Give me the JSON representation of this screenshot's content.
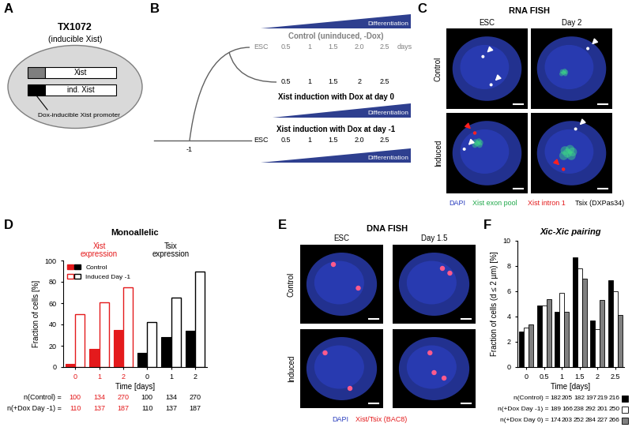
{
  "panel_letters": [
    "A",
    "B",
    "C",
    "D",
    "E",
    "F"
  ],
  "diagram_A": {
    "title": "TX1072",
    "subtitle": "(inducible Xist)",
    "genes": [
      "Xist",
      "ind. Xist"
    ],
    "promoter_label": "Dox-inducible Xist promoter"
  },
  "diagram_B": {
    "wedge_label": "Differentiation",
    "control_label": "Control (uninduced, -Dox)",
    "control_timeline": [
      "ESC",
      "0.5",
      "1",
      "1.5",
      "2.0",
      "2.5",
      "days"
    ],
    "day0_timeline": [
      "0.5",
      "1",
      "1.5",
      "2",
      "2.5"
    ],
    "day0_label": "Xist induction with Dox at day 0",
    "dayminus1_label": "Xist induction with Dox at day -1",
    "dayminus1_timeline": [
      "ESC",
      "0.5",
      "1",
      "1.5",
      "2.0",
      "2.5"
    ],
    "branch_label": "-1"
  },
  "images_C": {
    "title": "RNA FISH",
    "columns": [
      "ESC",
      "Day 2"
    ],
    "rows": [
      "Control",
      "Induced"
    ],
    "stains": [
      {
        "label": "DAPI",
        "color": "#2b3fbf"
      },
      {
        "label": "Xist exon pool",
        "color": "#1fa84a"
      },
      {
        "label": "Xist intron 1",
        "color": "#e41a1c"
      },
      {
        "label": "Tsix (DXPas34)",
        "color": "#000000"
      }
    ]
  },
  "images_E": {
    "title": "DNA FISH",
    "columns": [
      "ESC",
      "Day 1.5"
    ],
    "rows": [
      "Control",
      "Induced"
    ],
    "stains": [
      {
        "label": "DAPI",
        "color": "#2b3fbf"
      },
      {
        "label": "Xist/Tsix (BAC8)",
        "color": "#e41a1c"
      }
    ]
  },
  "chart_data": [
    {
      "type": "bar",
      "title": "Monoallelic",
      "categories": [
        "0",
        "1",
        "2",
        "0",
        "1",
        "2"
      ],
      "groups": [
        {
          "name": "Xist\nexpression",
          "color": "#e41a1c"
        },
        {
          "name": "Tsix\nexpression",
          "color": "#000000"
        }
      ],
      "series": [
        {
          "name": "Control",
          "colors": [
            "#e41a1c",
            "#e41a1c",
            "#e41a1c",
            "#000000",
            "#000000",
            "#000000"
          ],
          "values": [
            3,
            17,
            35,
            13,
            28,
            34
          ]
        },
        {
          "name": "Induced Day -1",
          "colors": [
            "#e41a1c",
            "#e41a1c",
            "#e41a1c",
            "#000000",
            "#000000",
            "#000000"
          ],
          "values": [
            50,
            61,
            75,
            42,
            65,
            90
          ]
        }
      ],
      "xlabel": "Time [days]",
      "ylabel": "Fraction of cells [%]",
      "ylim": [
        0,
        100
      ],
      "yticks": [
        0,
        20,
        40,
        60,
        80,
        100
      ],
      "legend": "upper left",
      "n_rows": [
        {
          "label": "n(Control) =",
          "values": [
            100,
            134,
            270,
            100,
            134,
            270
          ]
        },
        {
          "label": "n(+Dox Day -1) =",
          "values": [
            110,
            137,
            187,
            110,
            137,
            187
          ]
        }
      ]
    },
    {
      "type": "bar",
      "title": "Xic-Xic pairing",
      "categories": [
        "0",
        "0.5",
        "1",
        "1.5",
        "2",
        "2.5"
      ],
      "series": [
        {
          "color": "#000000",
          "values": [
            2.8,
            4.9,
            4.4,
            8.7,
            3.7,
            6.9
          ],
          "n_label": "n(Control) =",
          "n": [
            182,
            205,
            182,
            197,
            219,
            216
          ]
        },
        {
          "color": "#ffffff",
          "values": [
            3.1,
            4.9,
            5.9,
            7.8,
            3.0,
            6.0
          ],
          "n_label": "n(+Dox Day -1) =",
          "n": [
            189,
            166,
            238,
            292,
            201,
            250
          ]
        },
        {
          "color": "#808080",
          "values": [
            3.4,
            5.4,
            4.4,
            7.0,
            5.3,
            4.1
          ],
          "n_label": "n(+Dox Day 0) =",
          "n": [
            174,
            203,
            252,
            284,
            227,
            266
          ]
        }
      ],
      "xlabel": "Time [days]",
      "ylabel": "Fraction of cells (d ≤ 2 µm) [%]",
      "ylim": [
        0,
        10
      ],
      "yticks": [
        0,
        2,
        4,
        6,
        8,
        10
      ]
    }
  ]
}
